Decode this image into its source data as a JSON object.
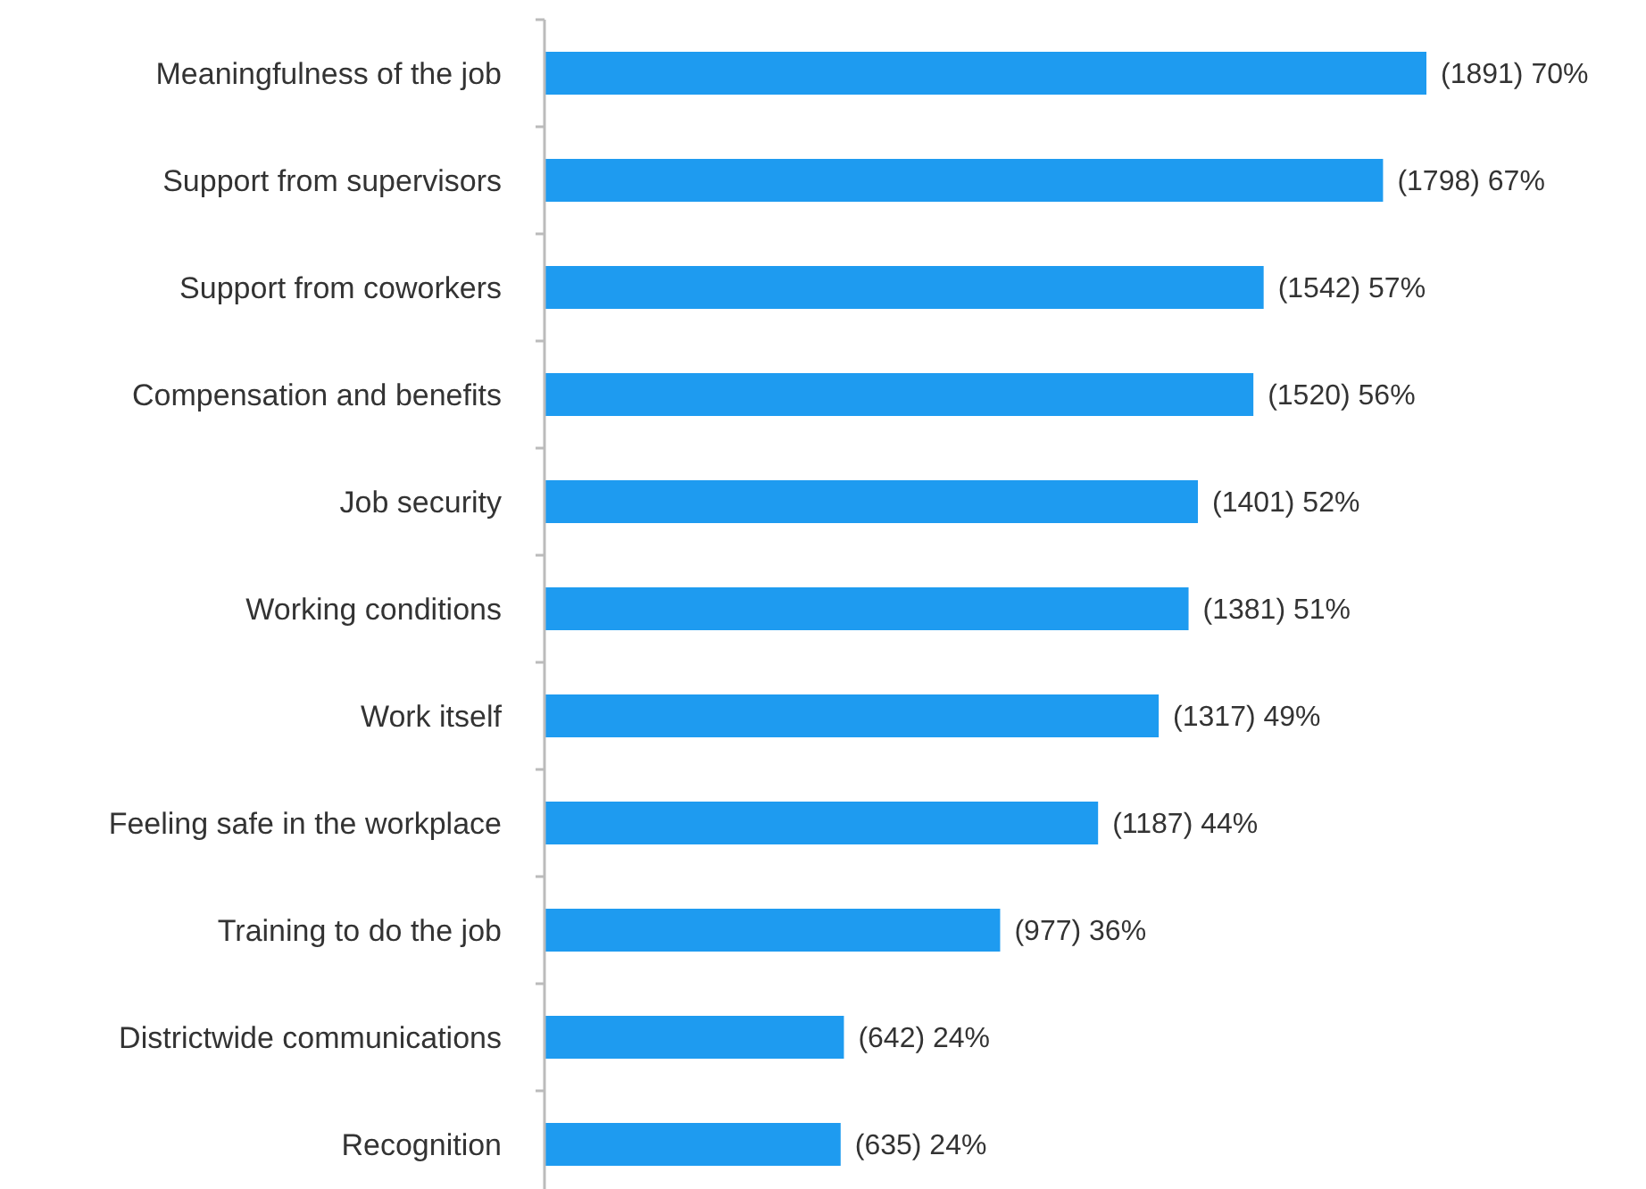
{
  "chart_data": {
    "type": "bar",
    "orientation": "horizontal",
    "categories": [
      "Meaningfulness of the job",
      "Support from supervisors",
      "Support from coworkers",
      "Compensation and benefits",
      "Job security",
      "Working conditions",
      "Work itself",
      "Feeling safe in the workplace",
      "Training to do the job",
      "Districtwide communications",
      "Recognition"
    ],
    "values": [
      1891,
      1798,
      1542,
      1520,
      1401,
      1381,
      1317,
      1187,
      977,
      642,
      635
    ],
    "value_labels": [
      "(1891) 70%",
      "(1798) 67%",
      "(1542) 57%",
      "(1520) 56%",
      "(1401) 52%",
      "(1381) 51%",
      "(1317) 49%",
      "(1187) 44%",
      "(977) 36%",
      "(642) 24%",
      "(635) 24%"
    ],
    "color": "#1e9bf0"
  }
}
